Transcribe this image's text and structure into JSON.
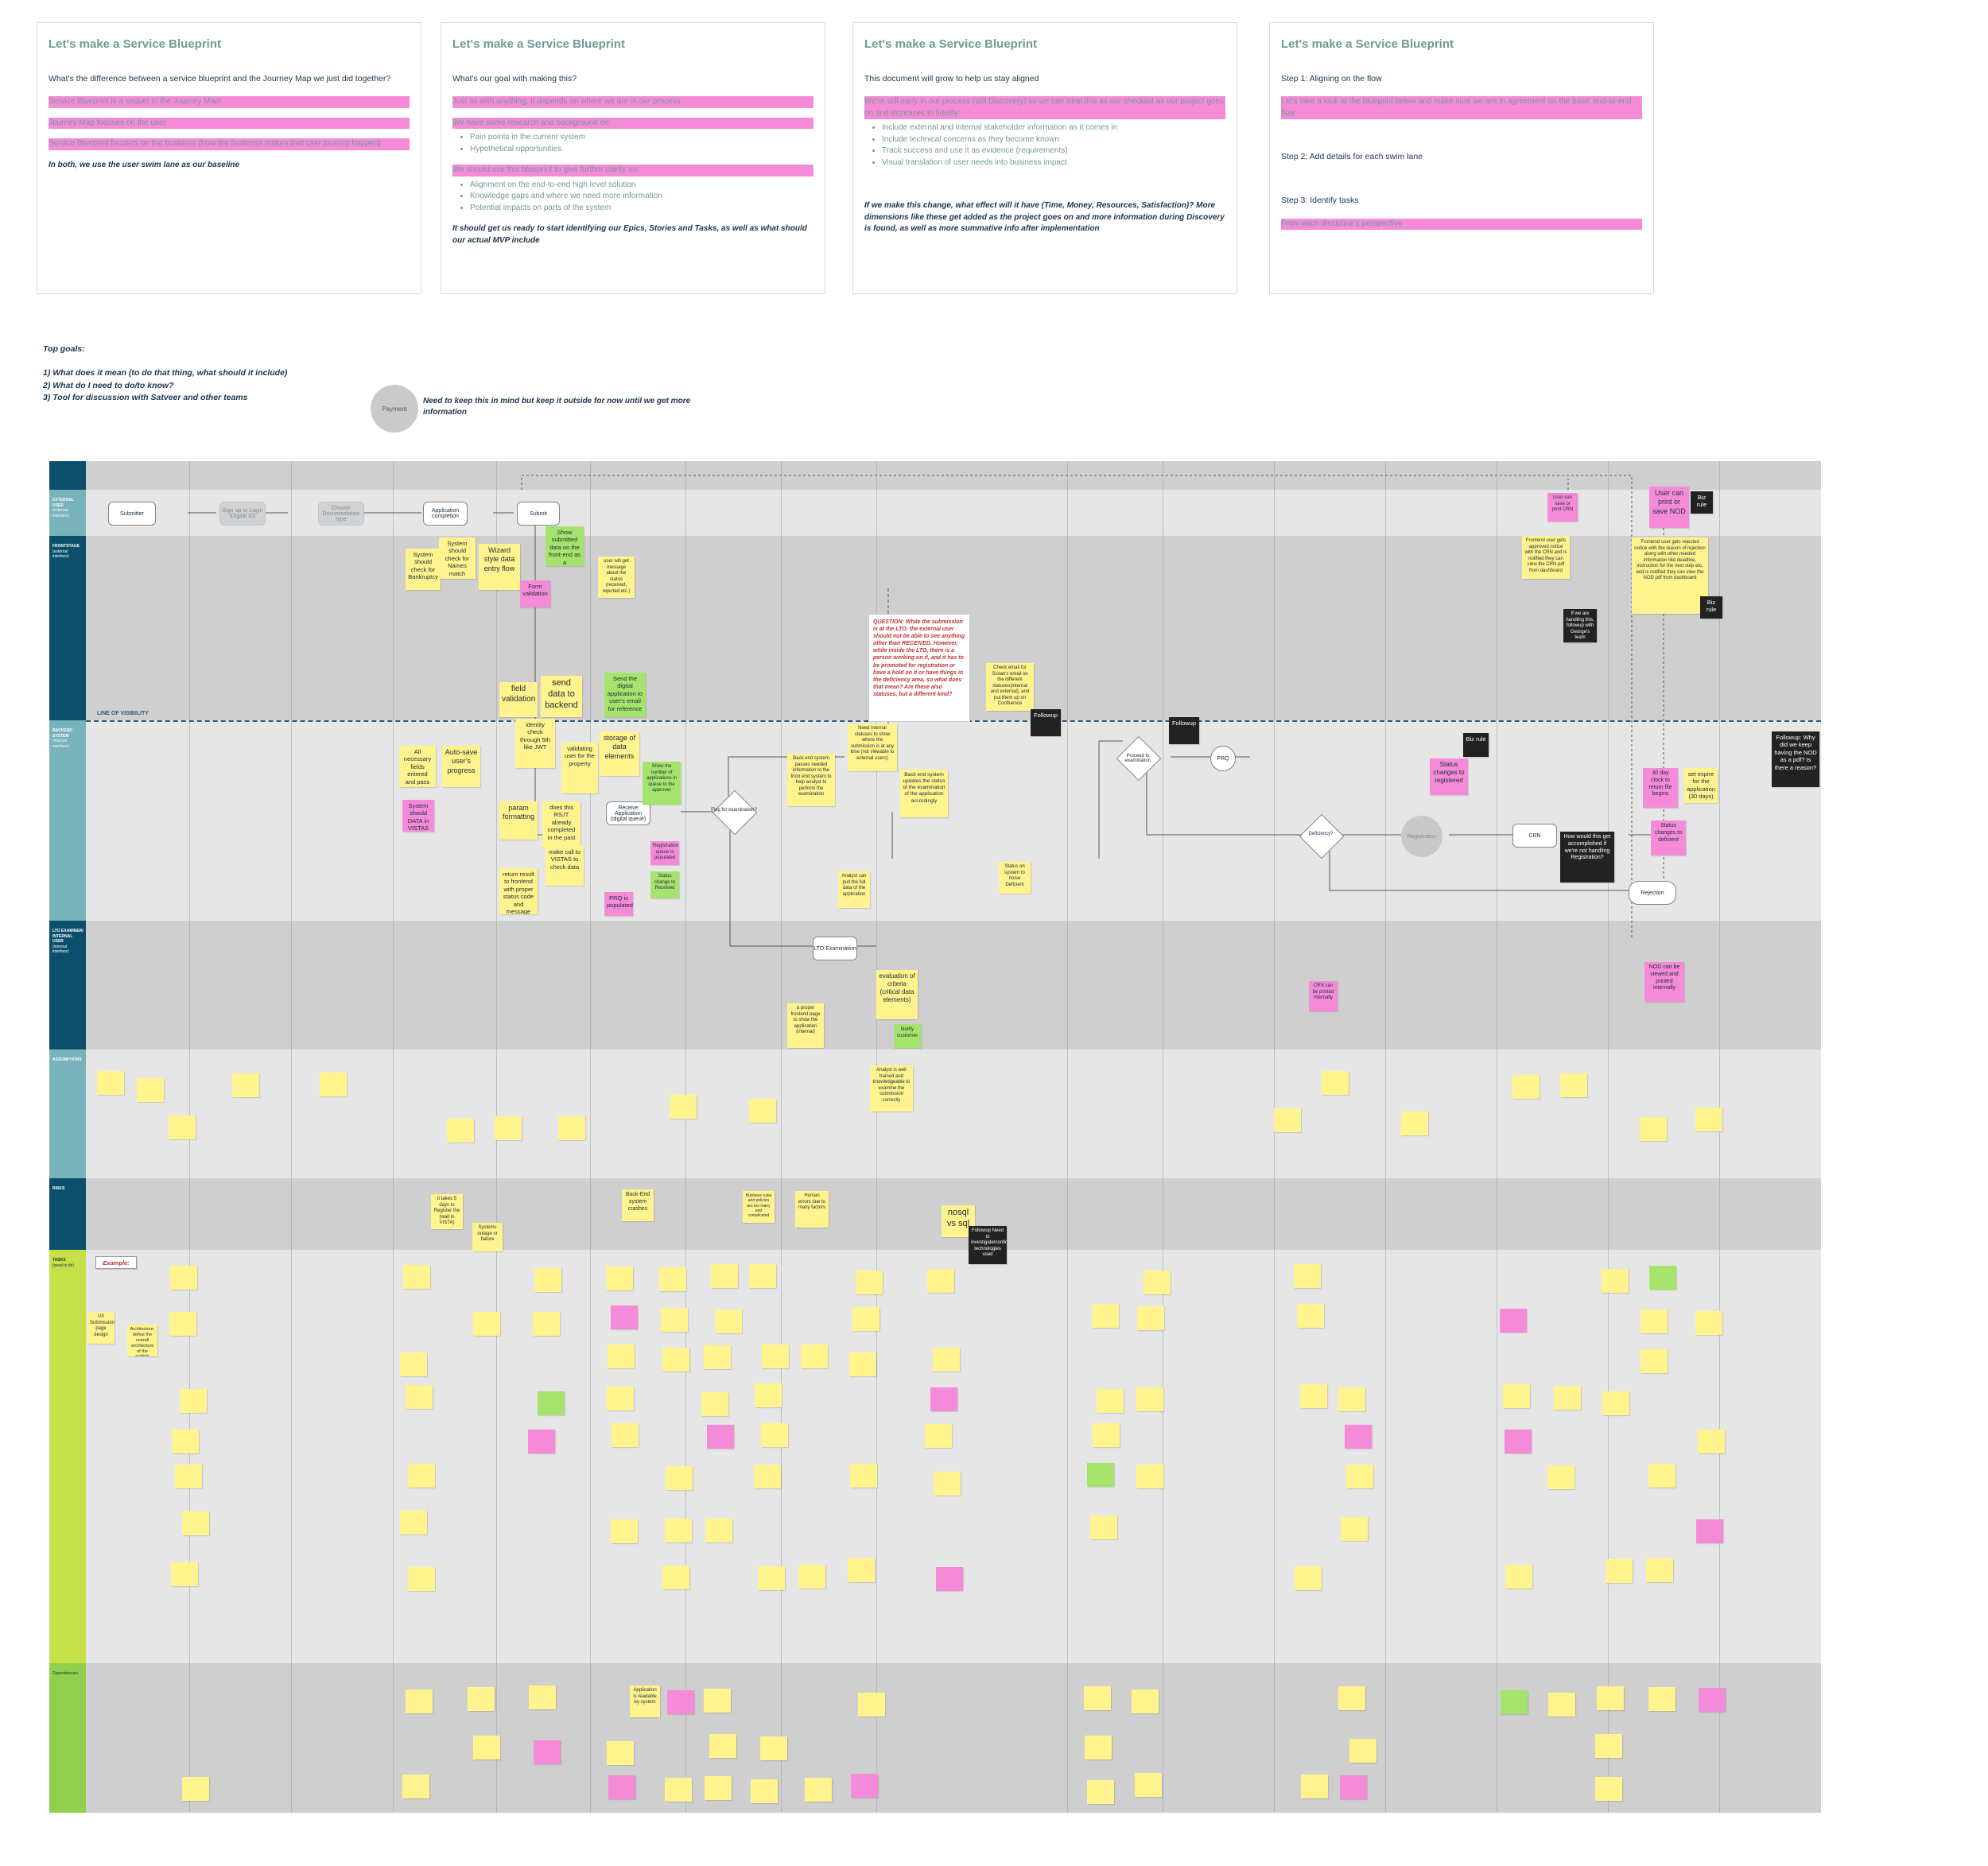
{
  "cards": [
    {
      "title": "Let's make a Service Blueprint",
      "lead": "What's the difference between a service blueprint and the Journey Map we just did together?",
      "p1": "Service Blueprint is a sequel to the Journey Map!",
      "p2": "Journey Map focuses on the user",
      "p3": "Service Blueprint focuses on the business (how the business makes that user journey happen)",
      "em": "In both, we use the user swim lane as our baseline"
    },
    {
      "title": "Let's make a Service Blueprint",
      "lead": "What's our goal with making this?",
      "p1": "Just as with anything, it depends on where we are in our process",
      "p2": "We have some research and background on:",
      "list1": [
        "Pain points in the current system",
        "Hypothetical opportunities"
      ],
      "p3": "We should use this blueprint to give further clarity on:",
      "list2": [
        "Alignment on the end-to-end high level solution",
        "Knowledge gaps and where we need more information",
        "Potential impacts on parts of the system"
      ],
      "em": "It should get us ready to start identifying our Epics, Stories and Tasks, as well as what should our actual MVP include"
    },
    {
      "title": "Let's make a Service Blueprint",
      "lead": "This document will grow to help us stay aligned",
      "p1": "We're still early in our process (still Discovery) so we can treat this as our checklist as our project goes on and increases in fidelity:",
      "list1": [
        "Include external and internal stakeholder information as it comes in",
        "Include technical concerns as they become known",
        "Track success and use it as evidence (requirements)",
        "Visual translation of user needs into business impact"
      ],
      "em": "If we make this change, what effect will it have (Time, Money, Resources, Satisfaction)? More dimensions like these get added as the project goes on and more information during Discovery is found, as well as more summative info after implementation"
    },
    {
      "title": "Let's make a Service Blueprint",
      "lead1": "Step 1: Aligning on the flow",
      "p1": "Let's take a look at the blueprint below and make sure we are in agreement on the basic end-to-end flow",
      "lead2": "Step 2: Add details for each swim lane",
      "lead3": "Step 3: Identify tasks",
      "p2": "From each discipline's perspective"
    }
  ],
  "goals": {
    "title": "Top goals:",
    "items": [
      "1) What does it mean (to do that thing, what should it include)",
      "2) What do I need to do/to know?",
      "3) Tool for discussion with Satveer and other teams"
    ]
  },
  "payment": {
    "label": "Payment",
    "note": "Need to keep this in mind but keep it outside for now until we get more information"
  },
  "lanes": [
    {
      "label": "EXTERNAL USER",
      "sub": "(external interface)"
    },
    {
      "label": "FRONTSTAGE",
      "sub": "(external interface)"
    },
    {
      "label": "BACKEND SYSTEM",
      "sub": "(internal interface)"
    },
    {
      "label": "LTO EXAMINER/ INTERNAL USER",
      "sub": "(internal interface)"
    },
    {
      "label": "ASSUMPTIONS",
      "sub": ""
    },
    {
      "label": "RISKS",
      "sub": ""
    },
    {
      "label": "TASKS",
      "sub": "(need to do)"
    },
    {
      "label": "Dependencies",
      "sub": ""
    }
  ],
  "line_of_visibility": "LINE OF VISIBILITY",
  "flow": {
    "submitter": "Submitter",
    "signup": "Sign up or Login (Digital ID)",
    "choose": "Choose Documentation type",
    "completion": "Application completion",
    "submit": "Submit",
    "receive": "Receive Application (digital queue)",
    "flag": "Flag for examination?",
    "lto": "LTO Examination",
    "proceed": "Proceed to examination",
    "prq": "PRQ",
    "deficiency": "Deficiency?",
    "registration": "Registration",
    "crn": "CRN",
    "rejection": "Rejection",
    "yes": "YES",
    "no": "NO"
  },
  "notes": {
    "show_submitted": "Show submitted data on the front-end as a confirmation",
    "system_check": "System should check for Bankruptcy",
    "check_names": "System should check for Names match",
    "wizard": "Wizard style data entry flow",
    "form_validation": "Form validation",
    "field_validation": "field validation",
    "send_backend": "send data to backend",
    "send_digital": "Send the digital application to user's email for reference",
    "identity": "identity check through 5th like JWT",
    "validating": "validating user for the property",
    "storage": "storage of data elements",
    "show_number": "Show the number of applications in queue to the approver",
    "necessary_fields": "All necessary fields entered and pass basic verification",
    "autosave": "Auto-save user's progress",
    "param": "param formatting",
    "does_this": "does this RSJT already completed in the past",
    "make_call": "make call to VISTAS to check data",
    "return_result": "return result to frontend with proper status code and message",
    "system_data": "System should DATA in VISTAS",
    "registration_queue": "Registration queue is populated",
    "status_received": "Status change to Received",
    "prq_populated": "PRQ is populated",
    "back_end_updates": "Back end system updates the status of the examination of the application accordingly",
    "back_end_passes": "Back end system passes needed information to the front end system to help analyst to perform the examination",
    "need_internal": "Need internal statuses to show where the submission is at any time (not viewable to external users)",
    "status_changes_registered": "Status changes to registered",
    "status_changes_deficient": "Status changes to deficient",
    "clock": "30 day clock to return file begins",
    "set_expire": "set expire for the application (30 days)",
    "followup_nod": "Followup: Why did we keep having the NOD as a pdf? Is there a reason?",
    "user_can_print_crn": "User can save or print CRN",
    "user_can_print_nod": "User can print or save NOD",
    "frontend_approved": "Frontend user gets approved notice with the CRN and is notified they can view the CRN pdf from dashboard",
    "frontend_rejected": "Frontend user gets rejected notice with the reason of rejection along with other needed information like deadline, instruction for the next step etc, and is notified they can view the NOD pdf from dashboard",
    "how_accomplished": "How would this get accomplished if we're not handling Registration?",
    "if_handling": "If we are handling this, followup with George's team",
    "evaluation": "evaluation of criteria (critical data elements)",
    "notify_customer": "Notify customer",
    "proper_frontend": "a proper frontend page to show the application (internal)",
    "analyst_pull": "Analyst can pull the full data of the application",
    "status_noise": "Status on system to noise Deficient",
    "crn_printed": "CRN can be printed internally",
    "nod_printed": "NOD can be viewed and printed internally",
    "analyst_well_trained": "Analyst is well trained and knowledgeable to examine the submission correctly",
    "it_takes_5": "it takes 5 days to Register the (wait in VISTA)",
    "systems_outage": "Systems outage or failure",
    "back_end_crashes": "Back-End system crashes",
    "human_errors": "Human errors due to many factors",
    "nosql": "nosql vs sql",
    "followup_tech": "Followup Need to investigate/confirm technologies used",
    "business_rules": "Business rules and policies are too many and complicated",
    "application_readable": "Application is readable by system",
    "example": "Example:",
    "ux_submission": "UX Submission page design",
    "architecture": "Architecture: define the overall architecture of the system",
    "question": "QUESTION: While the submission is at the LTO, the external user should not be able to see anything other than RECEIVED. However, while inside the LTO, there is a person working on it, and it has to be promoted for registration or have a hold on it or have things in the deficiency area, so what does that mean? Are these also statuses, but a different kind?",
    "check_email": "Check email for Susan's email on the different statuses(internal and external), and put them up on Confluence",
    "followup": "Followup",
    "biz_rule": "Biz rule",
    "user_get_message": "user will get message about the status (received, rejected etc.)"
  },
  "colors": {
    "lane_dark": "#0b4f6c",
    "lane_mid": "#78b2bb",
    "lane_tasks": "#c6e04a",
    "lane_dep": "#8fd14f",
    "sticky_yellow": "#fff38d",
    "sticky_pink": "#f58bd8",
    "sticky_green": "#a5e46c",
    "card_title": "#6f9a98"
  }
}
